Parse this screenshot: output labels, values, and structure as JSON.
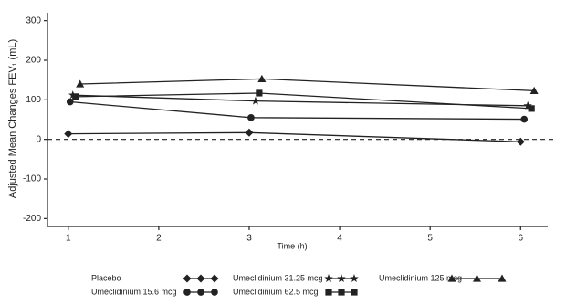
{
  "chart_data": {
    "type": "line",
    "y_label": "Adjusted Mean Changes FEV₁ (mL)",
    "x_label": "Time (h)",
    "xlim": [
      0.77,
      6.3
    ],
    "xticks": [
      1,
      2,
      3,
      4,
      5,
      6
    ],
    "ylim": [
      -220,
      320
    ],
    "yticks": [
      -200,
      -100,
      0,
      100,
      200,
      300
    ],
    "reference_line": 0,
    "series": [
      {
        "name": "Placebo",
        "color": "#222222",
        "marker": "diamond",
        "x": [
          1,
          3,
          6
        ],
        "values": [
          14,
          17,
          -6
        ]
      },
      {
        "name": "Umeclidinium 15.6 mcg",
        "color": "#222222",
        "marker": "circle",
        "x": [
          1.02,
          3.02,
          6.04
        ],
        "values": [
          95,
          55,
          51
        ]
      },
      {
        "name": "Umeclidinium 31.25 mcg",
        "color": "#222222",
        "marker": "star",
        "x": [
          1.05,
          3.07,
          6.08
        ],
        "values": [
          112,
          97,
          85
        ]
      },
      {
        "name": "Umeclidinium 62.5 mcg",
        "color": "#222222",
        "marker": "square",
        "x": [
          1.08,
          3.11,
          6.12
        ],
        "values": [
          108,
          117,
          78
        ]
      },
      {
        "name": "Umeclidinium 125 mcg",
        "color": "#222222",
        "marker": "triangle",
        "x": [
          1.13,
          3.14,
          6.15
        ],
        "values": [
          140,
          153,
          123
        ]
      }
    ]
  }
}
